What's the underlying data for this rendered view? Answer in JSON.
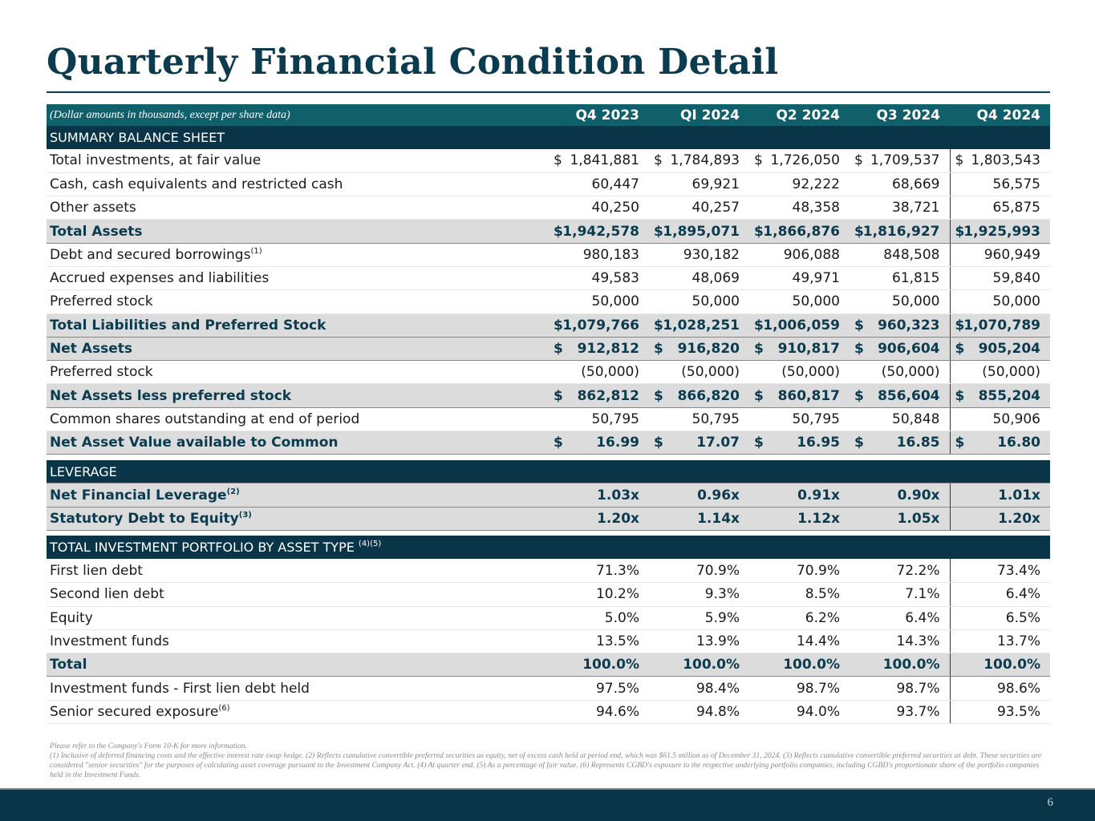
{
  "title": "Quarterly Financial Condition Detail",
  "header": {
    "note": "(Dollar amounts in thousands, except per share data)",
    "columns": [
      "Q4 2023",
      "QI 2024",
      "Q2 2024",
      "Q3 2024",
      "Q4 2024"
    ]
  },
  "sections": [
    {
      "title": "SUMMARY BALANCE SHEET",
      "sup": "",
      "rows": [
        {
          "label": "Total investments, at fair value",
          "sup": "",
          "type": "norm",
          "dollar": true,
          "values": [
            "1,841,881",
            "1,784,893",
            "1,726,050",
            "1,709,537",
            "1,803,543"
          ]
        },
        {
          "label": "Cash, cash equivalents and restricted cash",
          "sup": "",
          "type": "norm",
          "dollar": false,
          "values": [
            "60,447",
            "69,921",
            "92,222",
            "68,669",
            "56,575"
          ]
        },
        {
          "label": "Other assets",
          "sup": "",
          "type": "norm",
          "dollar": false,
          "values": [
            "40,250",
            "40,257",
            "48,358",
            "38,721",
            "65,875"
          ]
        },
        {
          "label": "Total Assets",
          "sup": "",
          "type": "tot",
          "dollar": true,
          "values": [
            "1,942,578",
            "1,895,071",
            "1,866,876",
            "1,816,927",
            "1,925,993"
          ]
        },
        {
          "label": "Debt and secured borrowings",
          "sup": "(1)",
          "type": "norm",
          "dollar": false,
          "values": [
            "980,183",
            "930,182",
            "906,088",
            "848,508",
            "960,949"
          ]
        },
        {
          "label": "Accrued expenses and liabilities",
          "sup": "",
          "type": "norm",
          "dollar": false,
          "values": [
            "49,583",
            "48,069",
            "49,971",
            "61,815",
            "59,840"
          ]
        },
        {
          "label": "Preferred stock",
          "sup": "",
          "type": "norm",
          "dollar": false,
          "values": [
            "50,000",
            "50,000",
            "50,000",
            "50,000",
            "50,000"
          ]
        },
        {
          "label": "Total Liabilities and Preferred Stock",
          "sup": "",
          "type": "tot",
          "dollar": true,
          "values": [
            "1,079,766",
            "1,028,251",
            "1,006,059",
            "960,323",
            "1,070,789"
          ]
        },
        {
          "label": "Net Assets",
          "sup": "",
          "type": "tot",
          "dollar": true,
          "values": [
            "912,812",
            "916,820",
            "910,817",
            "906,604",
            "905,204"
          ]
        },
        {
          "label": "Preferred stock",
          "sup": "",
          "type": "norm",
          "dollar": false,
          "values": [
            "(50,000)",
            "(50,000)",
            "(50,000)",
            "(50,000)",
            "(50,000)"
          ]
        },
        {
          "label": "Net Assets less preferred stock",
          "sup": "",
          "type": "tot",
          "dollar": true,
          "values": [
            "862,812",
            "866,820",
            "860,817",
            "856,604",
            "855,204"
          ]
        },
        {
          "label": "Common shares outstanding at end of period",
          "sup": "",
          "type": "norm",
          "dollar": false,
          "values": [
            "50,795",
            "50,795",
            "50,795",
            "50,848",
            "50,906"
          ]
        },
        {
          "label": "Net Asset Value available to Common",
          "sup": "",
          "type": "tot",
          "dollar": true,
          "values": [
            "16.99",
            "17.07",
            "16.95",
            "16.85",
            "16.80"
          ]
        }
      ]
    },
    {
      "title": "LEVERAGE",
      "sup": "",
      "rows": [
        {
          "label": "Net Financial Leverage",
          "sup": "(2)",
          "type": "tot",
          "dollar": false,
          "values": [
            "1.03x",
            "0.96x",
            "0.91x",
            "0.90x",
            "1.01x"
          ]
        },
        {
          "label": "Statutory Debt to Equity",
          "sup": "(3)",
          "type": "tot",
          "dollar": false,
          "values": [
            "1.20x",
            "1.14x",
            "1.12x",
            "1.05x",
            "1.20x"
          ]
        }
      ]
    },
    {
      "title": "TOTAL INVESTMENT PORTFOLIO BY ASSET TYPE ",
      "sup": "(4)(5)",
      "rows": [
        {
          "label": "First lien debt",
          "sup": "",
          "type": "norm",
          "dollar": false,
          "values": [
            "71.3%",
            "70.9%",
            "70.9%",
            "72.2%",
            "73.4%"
          ]
        },
        {
          "label": "Second lien debt",
          "sup": "",
          "type": "norm",
          "dollar": false,
          "values": [
            "10.2%",
            "9.3%",
            "8.5%",
            "7.1%",
            "6.4%"
          ]
        },
        {
          "label": "Equity",
          "sup": "",
          "type": "norm",
          "dollar": false,
          "values": [
            "5.0%",
            "5.9%",
            "6.2%",
            "6.4%",
            "6.5%"
          ]
        },
        {
          "label": "Investment funds",
          "sup": "",
          "type": "norm",
          "dollar": false,
          "values": [
            "13.5%",
            "13.9%",
            "14.4%",
            "14.3%",
            "13.7%"
          ]
        },
        {
          "label": "Total",
          "sup": "",
          "type": "tot",
          "dollar": false,
          "values": [
            "100.0%",
            "100.0%",
            "100.0%",
            "100.0%",
            "100.0%"
          ]
        },
        {
          "label": "Investment funds - First lien debt held",
          "sup": "",
          "type": "norm",
          "dollar": false,
          "values": [
            "97.5%",
            "98.4%",
            "98.7%",
            "98.7%",
            "98.6%"
          ]
        },
        {
          "label": "Senior secured exposure",
          "sup": "(6)",
          "type": "norm",
          "dollar": false,
          "values": [
            "94.6%",
            "94.8%",
            "94.0%",
            "93.7%",
            "93.5%"
          ]
        }
      ]
    }
  ],
  "currency_symbol": "$",
  "notes": [
    "Please refer to the Company's Form 10-K for more information.",
    "(1) Inclusive of deferred financing costs and the effective interest rate swap hedge. (2) Reflects cumulative convertible preferred securities as equity, net of excess cash held at period end, which was $61.5 million as of December 31, 2024. (3) Reflects cumulative convertible preferred securities as debt. These securities are considered \"senior securities\" for the purposes of calculating asset coverage pursuant to the Investment Company Act.  (4) At quarter end. (5) As a percentage of fair value. (6) Represents CGBD's exposure to the respective underlying portfolio companies, including CGBD's proportionate share of the portfolio companies held in the Investment Funds."
  ],
  "page_number": "6",
  "colors": {
    "title": "#0b3b4f",
    "header": "#10606c",
    "section": "#0a3447",
    "total_row": "#dcdcdc"
  }
}
